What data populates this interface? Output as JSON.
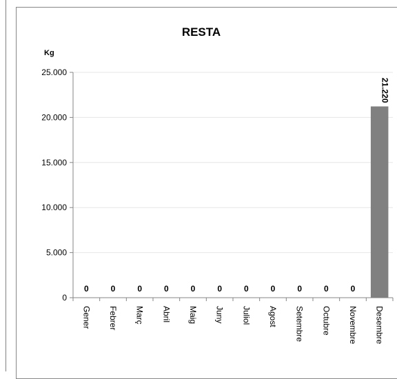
{
  "chart_data": {
    "type": "bar",
    "title": "RESTA",
    "ylabel": "Kg",
    "xlabel": "",
    "categories": [
      "Gener",
      "Febrer",
      "Març",
      "Abril",
      "Maig",
      "Juny",
      "Juliol",
      "Agost",
      "Setembre",
      "Octubre",
      "Novembre",
      "Desembre"
    ],
    "values": [
      0,
      0,
      0,
      0,
      0,
      0,
      0,
      0,
      0,
      0,
      0,
      21220
    ],
    "data_labels": [
      "0",
      "0",
      "0",
      "0",
      "0",
      "0",
      "0",
      "0",
      "0",
      "0",
      "0",
      "21.220"
    ],
    "ylim": [
      0,
      25000
    ],
    "yticks": [
      0,
      5000,
      10000,
      15000,
      20000,
      25000
    ],
    "ytick_labels": [
      "0",
      "5.000",
      "10.000",
      "15.000",
      "20.000",
      "25.000"
    ],
    "grid": true,
    "bar_color": "#808080",
    "legend": "none"
  }
}
